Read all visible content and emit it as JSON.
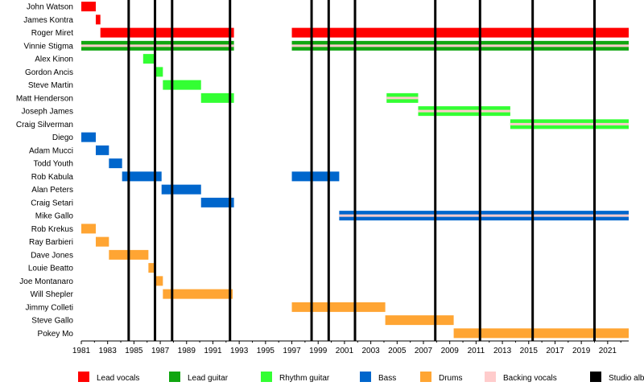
{
  "chart_data": {
    "type": "timeline",
    "title": "",
    "xlabel": "",
    "ylabel": "",
    "xlim": [
      1981,
      2022.6
    ],
    "xticks": [
      "1981",
      "1983",
      "1985",
      "1987",
      "1989",
      "1991",
      "1993",
      "1995",
      "1997",
      "1999",
      "2001",
      "2003",
      "2005",
      "2007",
      "2009",
      "2011",
      "2013",
      "2015",
      "2017",
      "2019",
      "2021"
    ],
    "roles": [
      {
        "id": "lead_vocals",
        "name": "Lead vocals",
        "color": "#ff0000"
      },
      {
        "id": "lead_guitar",
        "name": "Lead guitar",
        "color": "#11a611"
      },
      {
        "id": "rhythm_guitar",
        "name": "Rhythm guitar",
        "color": "#33ff33"
      },
      {
        "id": "bass",
        "name": "Bass",
        "color": "#0066cc"
      },
      {
        "id": "drums",
        "name": "Drums",
        "color": "#ffa533"
      },
      {
        "id": "backing_vocals",
        "name": "Backing vocals",
        "color": "#ffcccc"
      },
      {
        "id": "studio_album",
        "name": "Studio album",
        "color": "#000000"
      }
    ],
    "members": [
      {
        "name": "John Watson",
        "periods": [
          {
            "role": "lead_vocals",
            "start": 1981.0,
            "end": 1982.1
          }
        ]
      },
      {
        "name": "James Kontra",
        "periods": [
          {
            "role": "lead_vocals",
            "start": 1982.1,
            "end": 1982.45
          }
        ]
      },
      {
        "name": "Roger Miret",
        "periods": [
          {
            "role": "lead_vocals",
            "start": 1982.45,
            "end": 1992.6
          },
          {
            "role": "lead_vocals",
            "start": 1997.0,
            "end": 2022.6
          }
        ]
      },
      {
        "name": "Vinnie Stigma",
        "periods": [
          {
            "role": "lead_guitar",
            "start": 1981.0,
            "end": 1992.6,
            "secondary": "backing_vocals"
          },
          {
            "role": "lead_guitar",
            "start": 1997.0,
            "end": 2022.6,
            "secondary": "backing_vocals"
          }
        ]
      },
      {
        "name": "Alex Kinon",
        "periods": [
          {
            "role": "rhythm_guitar",
            "start": 1985.7,
            "end": 1986.6
          }
        ]
      },
      {
        "name": "Gordon Ancis",
        "periods": [
          {
            "role": "rhythm_guitar",
            "start": 1986.6,
            "end": 1987.2
          }
        ]
      },
      {
        "name": "Steve Martin",
        "periods": [
          {
            "role": "rhythm_guitar",
            "start": 1987.2,
            "end": 1990.1
          }
        ]
      },
      {
        "name": "Matt Henderson",
        "periods": [
          {
            "role": "rhythm_guitar",
            "start": 1990.1,
            "end": 1992.6
          },
          {
            "role": "rhythm_guitar",
            "start": 2004.2,
            "end": 2006.6,
            "secondary": "backing_vocals"
          }
        ]
      },
      {
        "name": "Joseph James",
        "periods": [
          {
            "role": "rhythm_guitar",
            "start": 2006.6,
            "end": 2013.6,
            "secondary": "backing_vocals"
          }
        ]
      },
      {
        "name": "Craig Silverman",
        "periods": [
          {
            "role": "rhythm_guitar",
            "start": 2013.6,
            "end": 2022.6,
            "secondary": "backing_vocals"
          }
        ]
      },
      {
        "name": "Diego",
        "periods": [
          {
            "role": "bass",
            "start": 1981.0,
            "end": 1982.1
          }
        ]
      },
      {
        "name": "Adam Mucci",
        "periods": [
          {
            "role": "bass",
            "start": 1982.1,
            "end": 1983.1
          }
        ]
      },
      {
        "name": "Todd Youth",
        "periods": [
          {
            "role": "bass",
            "start": 1983.1,
            "end": 1984.1
          }
        ]
      },
      {
        "name": "Rob Kabula",
        "periods": [
          {
            "role": "bass",
            "start": 1984.1,
            "end": 1987.1
          },
          {
            "role": "bass",
            "start": 1997.0,
            "end": 2000.6
          }
        ]
      },
      {
        "name": "Alan Peters",
        "periods": [
          {
            "role": "bass",
            "start": 1987.1,
            "end": 1990.1
          }
        ]
      },
      {
        "name": "Craig Setari",
        "periods": [
          {
            "role": "bass",
            "start": 1990.1,
            "end": 1992.6
          }
        ]
      },
      {
        "name": "Mike Gallo",
        "periods": [
          {
            "role": "bass",
            "start": 2000.6,
            "end": 2022.6,
            "secondary": "backing_vocals"
          }
        ]
      },
      {
        "name": "Rob Krekus",
        "periods": [
          {
            "role": "drums",
            "start": 1981.0,
            "end": 1982.1
          }
        ]
      },
      {
        "name": "Ray Barbieri",
        "periods": [
          {
            "role": "drums",
            "start": 1982.1,
            "end": 1983.1
          }
        ]
      },
      {
        "name": "Dave Jones",
        "periods": [
          {
            "role": "drums",
            "start": 1983.1,
            "end": 1986.1
          }
        ]
      },
      {
        "name": "Louie Beatto",
        "periods": [
          {
            "role": "drums",
            "start": 1986.1,
            "end": 1986.6
          }
        ]
      },
      {
        "name": "Joe Montanaro",
        "periods": [
          {
            "role": "drums",
            "start": 1986.6,
            "end": 1987.2
          }
        ]
      },
      {
        "name": "Will Shepler",
        "periods": [
          {
            "role": "drums",
            "start": 1987.2,
            "end": 1992.5
          }
        ]
      },
      {
        "name": "Jimmy Colleti",
        "periods": [
          {
            "role": "drums",
            "start": 1997.0,
            "end": 2004.1
          }
        ]
      },
      {
        "name": "Steve Gallo",
        "periods": [
          {
            "role": "drums",
            "start": 2004.1,
            "end": 2009.3
          }
        ]
      },
      {
        "name": "Pokey Mo",
        "periods": [
          {
            "role": "drums",
            "start": 2009.3,
            "end": 2022.6
          }
        ]
      }
    ],
    "studio_albums": [
      1984.6,
      1986.6,
      1987.9,
      1992.3,
      1998.5,
      1999.8,
      2001.8,
      2007.9,
      2011.3,
      2015.3,
      2020.0
    ]
  }
}
